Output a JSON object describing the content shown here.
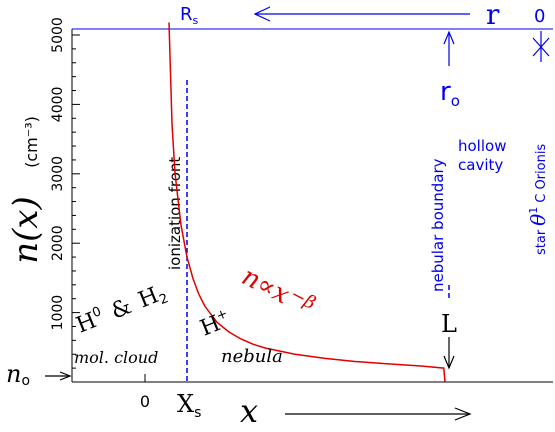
{
  "chart_data": {
    "type": "line",
    "ylabel": "n(x)",
    "ylabel_unit": "(cm⁻³)",
    "xlabel": "x",
    "ylim": [
      0,
      5200
    ],
    "y_ticks": [
      1000,
      2000,
      3000,
      4000,
      5000
    ],
    "x_ticks": [
      "0"
    ],
    "series": [
      {
        "name": "n∝x",
        "exponent": "−β",
        "color": "#e00000",
        "x": [
          0.4,
          0.45,
          0.5,
          0.6,
          0.7,
          0.8,
          0.9,
          1.0,
          1.2,
          1.4,
          1.6,
          1.8,
          2.0,
          2.5,
          3.0,
          3.5,
          4.0,
          4.6,
          4.98,
          5.0
        ],
        "y": [
          5180,
          3720,
          3010,
          2260,
          1800,
          1490,
          1260,
          1090,
          860,
          720,
          620,
          545,
          490,
          400,
          340,
          295,
          265,
          230,
          200,
          0
        ]
      }
    ],
    "top_axis": {
      "label": "r",
      "zero_label": "0",
      "rs_label": "R",
      "rs_sub": "s",
      "ro_label": "r",
      "ro_sub": "o"
    },
    "annotations": {
      "n0": "n",
      "n0_sub": "o",
      "xs": "X",
      "xs_sub": "s",
      "L": "L",
      "ionization_front": "ionization front",
      "nebular_boundary": "nebular boundary",
      "hollow": "hollow",
      "cavity": "cavity",
      "star": "star",
      "theta": "θ",
      "theta_sup": "1",
      "orionis": "C Orionis",
      "h0_h": "H",
      "h0_sup": "0",
      "amp": "&",
      "h2_h": "H",
      "h2_sub": "2",
      "hplus_h": "H",
      "hplus_sup": "+",
      "mol_cloud": "mol. cloud",
      "nebula": "nebula"
    },
    "colors": {
      "axis": "#000000",
      "blue": "#0000ee",
      "curve": "#e00000"
    }
  }
}
